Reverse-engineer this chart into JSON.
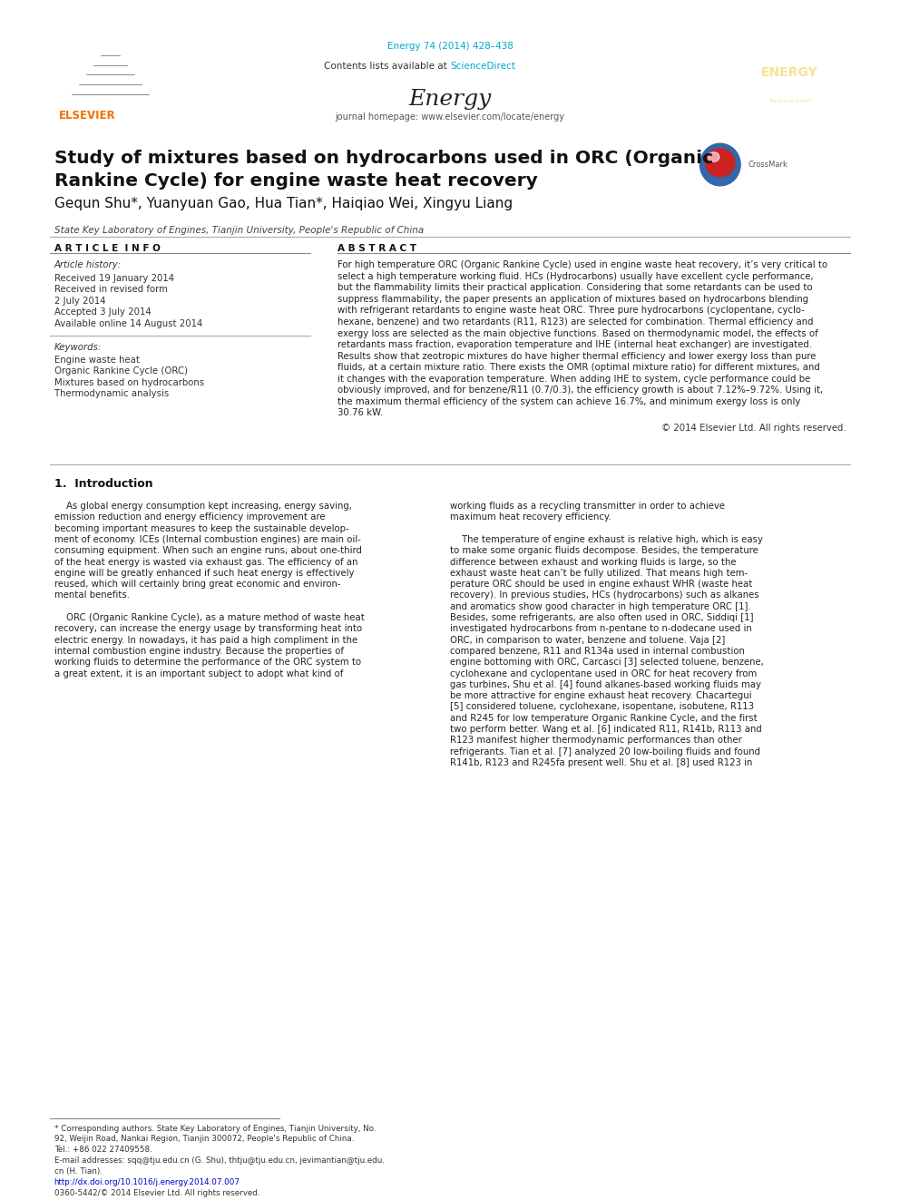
{
  "page_width": 9.92,
  "page_height": 13.23,
  "dpi": 100,
  "bg_color": "#ffffff",
  "journal_ref": "Energy 74 (2014) 428–438",
  "journal_ref_color": "#00aacc",
  "header_bg": "#e8e8e8",
  "header_text_top": "Contents lists available at ",
  "header_sciencedirect": "ScienceDirect",
  "header_sd_color": "#00aacc",
  "header_journal_name": "Energy",
  "header_homepage": "journal homepage: www.elsevier.com/locate/energy",
  "dark_bar_color": "#1a1a1a",
  "elsevier_color": "#f07000",
  "paper_title": "Study of mixtures based on hydrocarbons used in ORC (Organic\nRankine Cycle) for engine waste heat recovery",
  "authors": "Gequn Shu*, Yuanyuan Gao, Hua Tian*, Haiqiao Wei, Xingyu Liang",
  "affiliation": "State Key Laboratory of Engines, Tianjin University, People's Republic of China",
  "article_info_label": "A R T I C L E  I N F O",
  "abstract_label": "A B S T R A C T",
  "article_history_label": "Article history:",
  "received_line1": "Received 19 January 2014",
  "received_revised": "Received in revised form",
  "revised_date": "2 July 2014",
  "accepted": "Accepted 3 July 2014",
  "available": "Available online 14 August 2014",
  "keywords_label": "Keywords:",
  "keyword1": "Engine waste heat",
  "keyword2": "Organic Rankine Cycle (ORC)",
  "keyword3": "Mixtures based on hydrocarbons",
  "keyword4": "Thermodynamic analysis",
  "copyright": "© 2014 Elsevier Ltd. All rights reserved.",
  "section1_title": "1.  Introduction",
  "doi_text": "http://dx.doi.org/10.1016/j.energy.2014.07.007",
  "doi_color": "#0000cc",
  "issn_text": "0360-5442/© 2014 Elsevier Ltd. All rights reserved."
}
